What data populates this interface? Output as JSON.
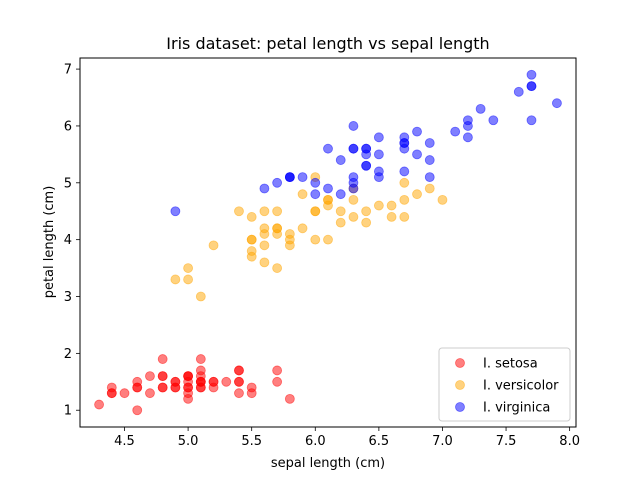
{
  "chart_data": {
    "type": "scatter",
    "title": "Iris dataset: petal length vs sepal length",
    "xlabel": "sepal length (cm)",
    "ylabel": "petal length (cm)",
    "xlim": [
      4.15,
      8.05
    ],
    "ylim": [
      0.705,
      7.195
    ],
    "xticks": [
      "4.5",
      "5.0",
      "5.5",
      "6.0",
      "6.5",
      "7.0",
      "7.5",
      "8.0"
    ],
    "yticks": [
      "1",
      "2",
      "3",
      "4",
      "5",
      "6",
      "7"
    ],
    "grid": false,
    "legend_position": "bottom-right",
    "marker_alpha": 0.5,
    "series": [
      {
        "name": "I. setosa",
        "color": "#ff0000",
        "points": [
          [
            5.1,
            1.4
          ],
          [
            4.9,
            1.4
          ],
          [
            4.7,
            1.3
          ],
          [
            4.6,
            1.5
          ],
          [
            5.0,
            1.4
          ],
          [
            5.4,
            1.7
          ],
          [
            4.6,
            1.4
          ],
          [
            5.0,
            1.5
          ],
          [
            4.4,
            1.4
          ],
          [
            4.9,
            1.5
          ],
          [
            5.4,
            1.5
          ],
          [
            4.8,
            1.6
          ],
          [
            4.8,
            1.4
          ],
          [
            4.3,
            1.1
          ],
          [
            5.8,
            1.2
          ],
          [
            5.7,
            1.5
          ],
          [
            5.4,
            1.3
          ],
          [
            5.1,
            1.4
          ],
          [
            5.7,
            1.7
          ],
          [
            5.1,
            1.5
          ],
          [
            5.4,
            1.7
          ],
          [
            5.1,
            1.5
          ],
          [
            4.6,
            1.0
          ],
          [
            5.1,
            1.7
          ],
          [
            4.8,
            1.9
          ],
          [
            5.0,
            1.6
          ],
          [
            5.0,
            1.6
          ],
          [
            5.2,
            1.5
          ],
          [
            5.2,
            1.4
          ],
          [
            4.7,
            1.6
          ],
          [
            4.8,
            1.6
          ],
          [
            5.4,
            1.5
          ],
          [
            5.2,
            1.5
          ],
          [
            5.5,
            1.4
          ],
          [
            4.9,
            1.5
          ],
          [
            5.0,
            1.2
          ],
          [
            5.5,
            1.3
          ],
          [
            4.9,
            1.4
          ],
          [
            4.4,
            1.3
          ],
          [
            5.1,
            1.5
          ],
          [
            5.0,
            1.3
          ],
          [
            4.5,
            1.3
          ],
          [
            4.4,
            1.3
          ],
          [
            5.0,
            1.6
          ],
          [
            5.1,
            1.9
          ],
          [
            4.8,
            1.4
          ],
          [
            5.1,
            1.6
          ],
          [
            4.6,
            1.4
          ],
          [
            5.3,
            1.5
          ],
          [
            5.0,
            1.4
          ]
        ]
      },
      {
        "name": "I. versicolor",
        "color": "#ffa500",
        "points": [
          [
            7.0,
            4.7
          ],
          [
            6.4,
            4.5
          ],
          [
            6.9,
            4.9
          ],
          [
            5.5,
            4.0
          ],
          [
            6.5,
            4.6
          ],
          [
            5.7,
            4.5
          ],
          [
            6.3,
            4.7
          ],
          [
            4.9,
            3.3
          ],
          [
            6.6,
            4.6
          ],
          [
            5.2,
            3.9
          ],
          [
            5.0,
            3.5
          ],
          [
            5.9,
            4.2
          ],
          [
            6.0,
            4.0
          ],
          [
            6.1,
            4.7
          ],
          [
            5.6,
            3.6
          ],
          [
            6.7,
            4.4
          ],
          [
            5.6,
            4.5
          ],
          [
            5.8,
            4.1
          ],
          [
            6.2,
            4.5
          ],
          [
            5.6,
            3.9
          ],
          [
            5.9,
            4.8
          ],
          [
            6.1,
            4.0
          ],
          [
            6.3,
            4.9
          ],
          [
            6.1,
            4.7
          ],
          [
            6.4,
            4.3
          ],
          [
            6.6,
            4.4
          ],
          [
            6.8,
            4.8
          ],
          [
            6.7,
            5.0
          ],
          [
            6.0,
            4.5
          ],
          [
            5.7,
            3.5
          ],
          [
            5.5,
            3.8
          ],
          [
            5.5,
            3.7
          ],
          [
            5.8,
            3.9
          ],
          [
            6.0,
            5.1
          ],
          [
            5.4,
            4.5
          ],
          [
            6.0,
            4.5
          ],
          [
            6.7,
            4.7
          ],
          [
            6.3,
            4.4
          ],
          [
            5.6,
            4.1
          ],
          [
            5.5,
            4.0
          ],
          [
            5.5,
            4.4
          ],
          [
            6.1,
            4.6
          ],
          [
            5.8,
            4.0
          ],
          [
            5.0,
            3.3
          ],
          [
            5.6,
            4.2
          ],
          [
            5.7,
            4.2
          ],
          [
            5.7,
            4.2
          ],
          [
            6.2,
            4.3
          ],
          [
            5.1,
            3.0
          ],
          [
            5.7,
            4.1
          ]
        ]
      },
      {
        "name": "I. virginica",
        "color": "#0000ff",
        "points": [
          [
            6.3,
            6.0
          ],
          [
            5.8,
            5.1
          ],
          [
            7.1,
            5.9
          ],
          [
            6.3,
            5.6
          ],
          [
            6.5,
            5.8
          ],
          [
            7.6,
            6.6
          ],
          [
            4.9,
            4.5
          ],
          [
            7.3,
            6.3
          ],
          [
            6.7,
            5.8
          ],
          [
            7.2,
            6.1
          ],
          [
            6.5,
            5.1
          ],
          [
            6.4,
            5.3
          ],
          [
            6.8,
            5.5
          ],
          [
            5.7,
            5.0
          ],
          [
            5.8,
            5.1
          ],
          [
            6.4,
            5.3
          ],
          [
            6.5,
            5.5
          ],
          [
            7.7,
            6.7
          ],
          [
            7.7,
            6.9
          ],
          [
            6.0,
            5.0
          ],
          [
            6.9,
            5.7
          ],
          [
            5.6,
            4.9
          ],
          [
            7.7,
            6.7
          ],
          [
            6.3,
            4.9
          ],
          [
            6.7,
            5.7
          ],
          [
            7.2,
            6.0
          ],
          [
            6.2,
            4.8
          ],
          [
            6.1,
            4.9
          ],
          [
            6.4,
            5.6
          ],
          [
            7.2,
            5.8
          ],
          [
            7.4,
            6.1
          ],
          [
            7.9,
            6.4
          ],
          [
            6.4,
            5.6
          ],
          [
            6.3,
            5.1
          ],
          [
            6.1,
            5.6
          ],
          [
            7.7,
            6.1
          ],
          [
            6.3,
            5.6
          ],
          [
            6.4,
            5.5
          ],
          [
            6.0,
            4.8
          ],
          [
            6.9,
            5.4
          ],
          [
            6.7,
            5.6
          ],
          [
            6.9,
            5.1
          ],
          [
            5.8,
            5.1
          ],
          [
            6.8,
            5.9
          ],
          [
            6.7,
            5.7
          ],
          [
            6.7,
            5.2
          ],
          [
            6.3,
            5.0
          ],
          [
            6.5,
            5.2
          ],
          [
            6.2,
            5.4
          ],
          [
            5.9,
            5.1
          ]
        ]
      }
    ]
  }
}
